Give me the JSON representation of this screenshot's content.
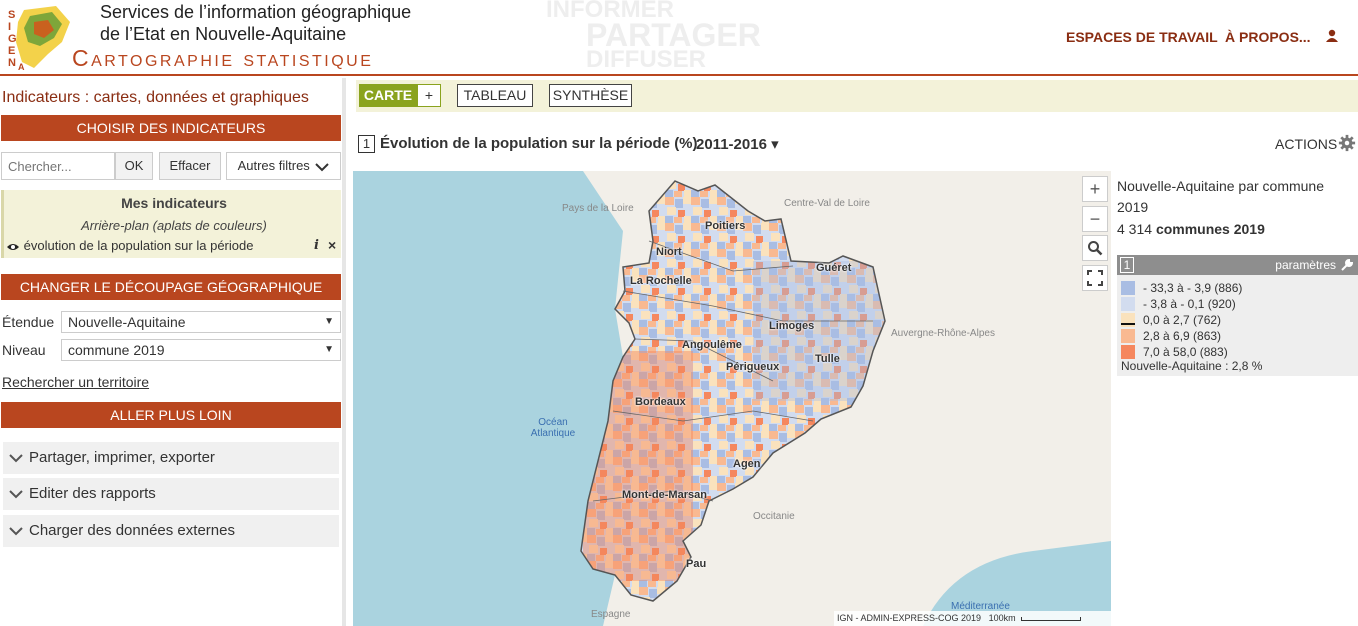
{
  "header": {
    "site_line1": "Services de l’information géographique",
    "site_line2": "de l’Etat en Nouvelle-Aquitaine",
    "site_title": "Cartographie statistique",
    "logo_text": "SIGENA",
    "bg_words": [
      "INFORMER",
      "PARTAGER",
      "DIFFUSER"
    ],
    "nav": {
      "espaces": "ESPACES DE TRAVAIL",
      "apropos": "À PROPOS..."
    },
    "accent_color": "#b9461f"
  },
  "sidebar": {
    "title": "Indicateurs : cartes, données et graphiques",
    "choose_header": "CHOISIR DES INDICATEURS",
    "search": {
      "placeholder": "Chercher...",
      "ok": "OK",
      "clear": "Effacer",
      "filters": "Autres filtres"
    },
    "my_indicators": {
      "title": "Mes indicateurs",
      "subtitle": "Arrière-plan (aplats de couleurs)",
      "item": "évolution de la population sur la période",
      "info": "i",
      "remove": "×"
    },
    "change_header": "CHANGER LE DÉCOUPAGE GÉOGRAPHIQUE",
    "etendue_label": "Étendue",
    "etendue_value": "Nouvelle-Aquitaine",
    "niveau_label": "Niveau",
    "niveau_value": "commune 2019",
    "search_territory": "Rechercher un territoire",
    "further_header": "ALLER PLUS LOIN",
    "accordions": [
      "Partager, imprimer, exporter",
      "Editer des rapports",
      "Charger des données externes"
    ]
  },
  "tabs": {
    "carte": "CARTE",
    "plus": "+",
    "tableau": "TABLEAU",
    "synthese": "SYNTHÈSE"
  },
  "map_header": {
    "number": "1",
    "title": "Évolution de la population sur la période (%)",
    "period": "2011-2016 ▾",
    "actions": "ACTIONS"
  },
  "map": {
    "controls": {
      "zoom_in": "+",
      "zoom_out": "−"
    },
    "regions": [
      "Pays de la Loire",
      "Centre-Val de Loire",
      "Auvergne-Rhône-Alpes",
      "Occitanie",
      "Espagne"
    ],
    "seas": {
      "ocean": "Océan Atlantique",
      "med": "Méditerranée"
    },
    "cities": [
      "Poitiers",
      "Niort",
      "Guéret",
      "La Rochelle",
      "Limoges",
      "Angoulême",
      "Tulle",
      "Périgueux",
      "Bordeaux",
      "Agen",
      "Mont-de-Marsan",
      "Pau"
    ],
    "attribution": "IGN - ADMIN-EXPRESS-COG 2019",
    "scale": "100km"
  },
  "legend": {
    "title": "Nouvelle-Aquitaine par commune",
    "year": "2019",
    "count_number": "4 314",
    "count_label": "communes 2019",
    "number": "1",
    "params": "paramètres",
    "classes": [
      {
        "label": "- 33,3 à - 3,9 (886)",
        "color": "#a9bde3"
      },
      {
        "label": "- 3,8 à - 0,1 (920)",
        "color": "#d2dcef"
      },
      {
        "label": "0,0 à 2,7 (762)",
        "color": "#fae2bd"
      },
      {
        "label": "2,8 à 6,9 (863)",
        "color": "#f9b991"
      },
      {
        "label": "7,0 à 58,0 (883)",
        "color": "#f5875e"
      }
    ],
    "average": "Nouvelle-Aquitaine : 2,8 %"
  }
}
